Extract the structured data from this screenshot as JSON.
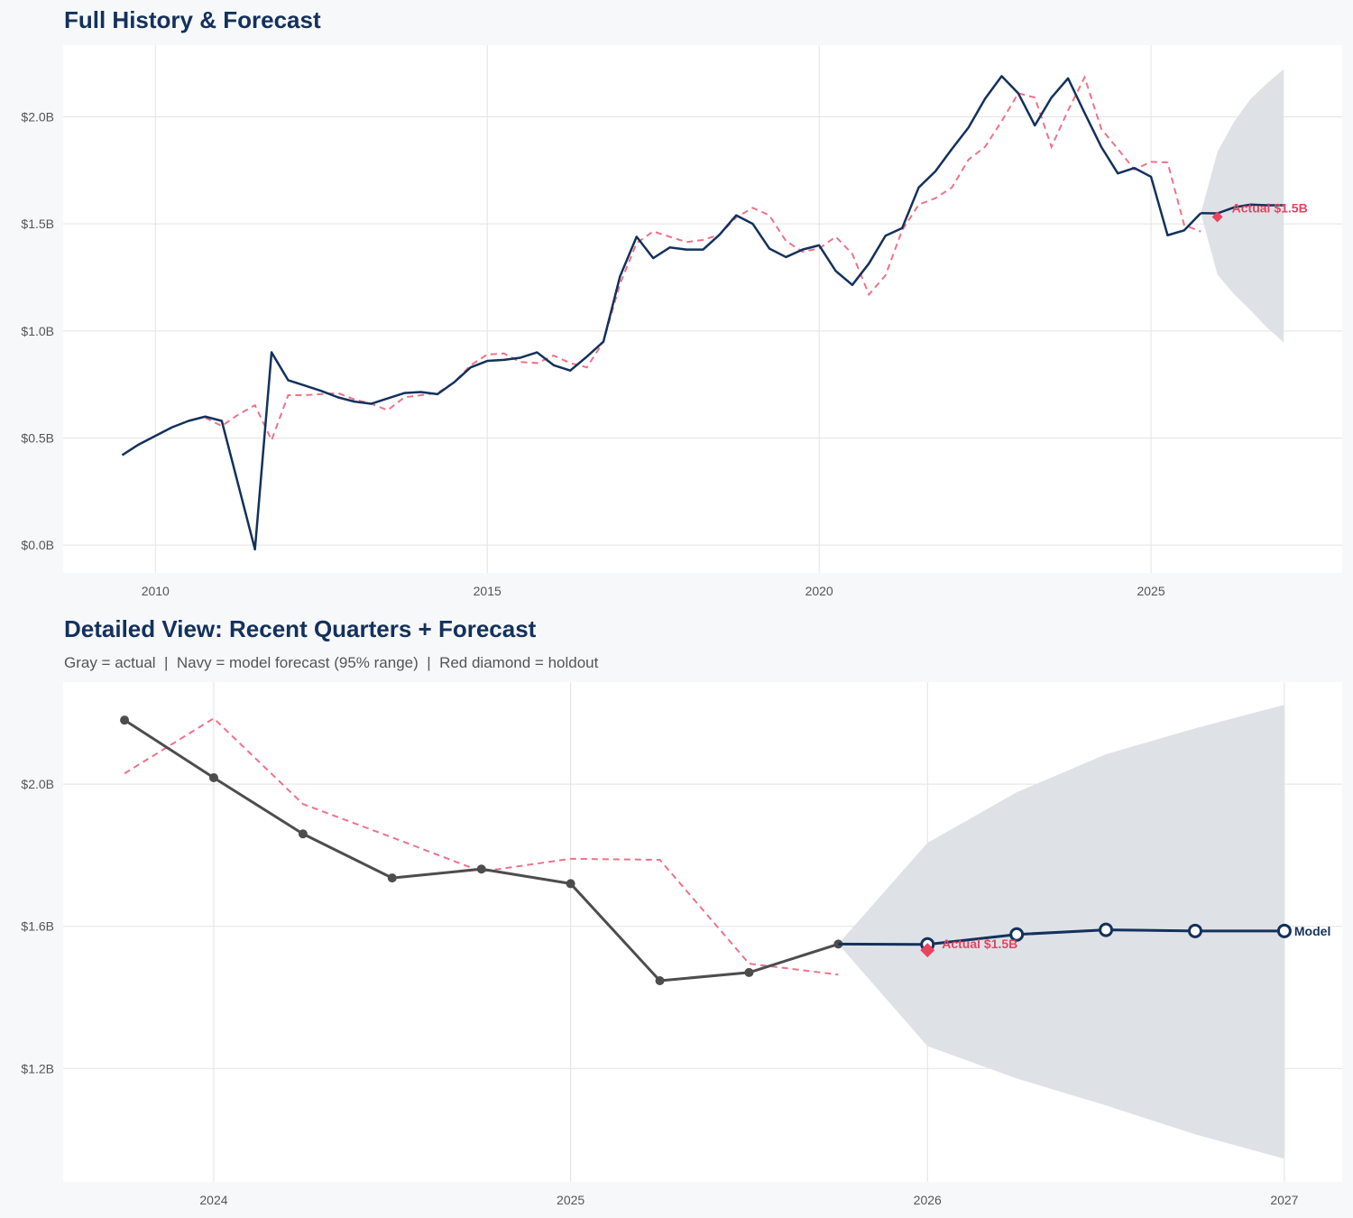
{
  "colors": {
    "background": "#f7f8fa",
    "panel": "#ffffff",
    "grid": "#e3e3e3",
    "navy": "#13315c",
    "actual_gray": "#4d4d4d",
    "fitted_red": "#ef7288",
    "holdout_red": "#e8435f",
    "band": "#dce0e6"
  },
  "chart_data": [
    {
      "type": "line",
      "title": "Full History & Forecast",
      "xlim": [
        2008.61,
        2027.88
      ],
      "ylim": [
        -0.13,
        2.335
      ],
      "x_ticks": [
        2010,
        2015,
        2020,
        2025
      ],
      "x_tick_labels": [
        "2010",
        "2015",
        "2020",
        "2025"
      ],
      "y_ticks": [
        0,
        0.5,
        1.0,
        1.5,
        2.0
      ],
      "y_tick_labels": [
        "$0.0B",
        "$0.5B",
        "$1.0B",
        "$1.5B",
        "$2.0B"
      ],
      "grid": true,
      "actual": {
        "x_start": 2009.5,
        "x_step": 0.25,
        "values": [
          0.42,
          0.47,
          0.51,
          0.55,
          0.58,
          0.6,
          0.58,
          0.28,
          -0.02,
          0.9,
          0.77,
          0.745,
          0.72,
          0.69,
          0.67,
          0.66,
          0.685,
          0.71,
          0.715,
          0.705,
          0.76,
          0.83,
          0.86,
          0.865,
          0.875,
          0.9,
          0.84,
          0.815,
          0.88,
          0.95,
          1.255,
          1.44,
          1.34,
          1.39,
          1.38,
          1.38,
          1.45,
          1.54,
          1.5,
          1.385,
          1.345,
          1.38,
          1.4,
          1.28,
          1.215,
          1.315,
          1.445,
          1.48,
          1.67,
          1.745,
          1.85,
          1.95,
          2.085,
          2.19,
          2.11,
          1.96,
          2.09,
          2.18,
          2.018,
          1.86,
          1.736,
          1.761,
          1.72,
          1.447,
          1.47,
          1.55
        ]
      },
      "fitted": {
        "x_start": 2010.75,
        "x_step": 0.25,
        "values": [
          0.595,
          0.556,
          0.61,
          0.653,
          0.49,
          0.7,
          0.7,
          0.705,
          0.71,
          0.68,
          0.66,
          0.63,
          0.69,
          0.7,
          0.71,
          0.76,
          0.84,
          0.89,
          0.895,
          0.855,
          0.85,
          0.885,
          0.85,
          0.83,
          0.95,
          1.22,
          1.41,
          1.465,
          1.44,
          1.415,
          1.425,
          1.45,
          1.53,
          1.575,
          1.54,
          1.42,
          1.37,
          1.385,
          1.44,
          1.36,
          1.17,
          1.26,
          1.47,
          1.59,
          1.62,
          1.67,
          1.8,
          1.86,
          1.98,
          2.11,
          2.09,
          1.86,
          2.03,
          2.185,
          1.944,
          1.85,
          1.754,
          1.79,
          1.787,
          1.495,
          1.464
        ]
      },
      "forecast": {
        "x": [
          2025.75,
          2026.0,
          2026.25,
          2026.5,
          2026.75,
          2027.0
        ],
        "mean": [
          1.55,
          1.549,
          1.577,
          1.59,
          1.587,
          1.587
        ],
        "lower": [
          1.55,
          1.263,
          1.172,
          1.096,
          1.015,
          0.946
        ],
        "upper": [
          1.55,
          1.835,
          1.977,
          2.084,
          2.157,
          2.223
        ]
      },
      "holdout": {
        "x": 2026.0,
        "value": 1.533,
        "label": "Actual $1.5B"
      }
    },
    {
      "type": "line",
      "title": "Detailed View: Recent Quarters + Forecast",
      "subtitle": "Gray = actual  |  Navy = model forecast (95% range)  |  Red diamond = holdout",
      "xlim": [
        2023.578,
        2027.162
      ],
      "ylim": [
        0.881,
        2.287
      ],
      "x_ticks": [
        2024,
        2025,
        2026,
        2027
      ],
      "x_tick_labels": [
        "2024",
        "2025",
        "2026",
        "2027"
      ],
      "y_ticks": [
        1.2,
        1.6,
        2.0
      ],
      "y_tick_labels": [
        "$1.2B",
        "$1.6B",
        "$2.0B"
      ],
      "grid": true,
      "actual": {
        "x": [
          2023.75,
          2024.0,
          2024.25,
          2024.5,
          2024.75,
          2025.0,
          2025.25,
          2025.5,
          2025.75
        ],
        "values": [
          2.18,
          2.018,
          1.86,
          1.736,
          1.761,
          1.72,
          1.447,
          1.47,
          1.55
        ]
      },
      "fitted": {
        "x": [
          2023.75,
          2024.0,
          2024.25,
          2024.5,
          2024.75,
          2025.0,
          2025.25,
          2025.5,
          2025.75
        ],
        "values": [
          2.03,
          2.185,
          1.944,
          1.85,
          1.754,
          1.79,
          1.787,
          1.495,
          1.464
        ]
      },
      "forecast": {
        "x": [
          2025.75,
          2026.0,
          2026.25,
          2026.5,
          2026.75,
          2027.0
        ],
        "mean": [
          1.55,
          1.549,
          1.577,
          1.59,
          1.587,
          1.587
        ],
        "lower": [
          1.55,
          1.263,
          1.172,
          1.096,
          1.015,
          0.946
        ],
        "upper": [
          1.55,
          1.835,
          1.977,
          2.084,
          2.157,
          2.223
        ],
        "end_label": "Model"
      },
      "holdout": {
        "x": 2026.0,
        "value": 1.533,
        "label": "Actual $1.5B"
      }
    }
  ]
}
